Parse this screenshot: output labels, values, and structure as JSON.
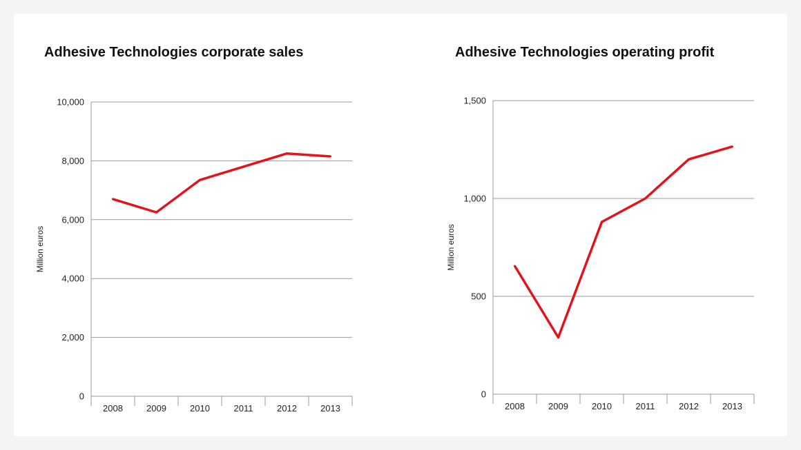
{
  "colors": {
    "line": "#e3121b",
    "grid": "#9a9a9a",
    "text": "#222222",
    "background": "#f4f4f4",
    "card": "#ffffff"
  },
  "chart_data": [
    {
      "type": "line",
      "title": "Adhesive Technologies corporate sales",
      "ylabel": "Million euros",
      "xlabel": "",
      "categories": [
        "2008",
        "2009",
        "2010",
        "2011",
        "2012",
        "2013"
      ],
      "series": [
        {
          "values": [
            6700,
            6250,
            7350,
            7800,
            8250,
            8150
          ]
        }
      ],
      "ylim": [
        0,
        10000
      ],
      "yticks": [
        0,
        2000,
        4000,
        6000,
        8000,
        10000
      ],
      "ytick_labels": [
        "0",
        "2,000",
        "4,000",
        "6,000",
        "8,000",
        "10,000"
      ],
      "grid": true,
      "legend": "none"
    },
    {
      "type": "line",
      "title": "Adhesive Technologies operating profit",
      "ylabel": "Million euros",
      "xlabel": "",
      "categories": [
        "2008",
        "2009",
        "2010",
        "2011",
        "2012",
        "2013"
      ],
      "series": [
        {
          "values": [
            655,
            290,
            880,
            1000,
            1200,
            1265
          ]
        }
      ],
      "ylim": [
        0,
        1500
      ],
      "yticks": [
        0,
        500,
        1000,
        1500
      ],
      "ytick_labels": [
        "0",
        "500",
        "1,000",
        "1,500"
      ],
      "grid": true,
      "legend": "none"
    }
  ]
}
